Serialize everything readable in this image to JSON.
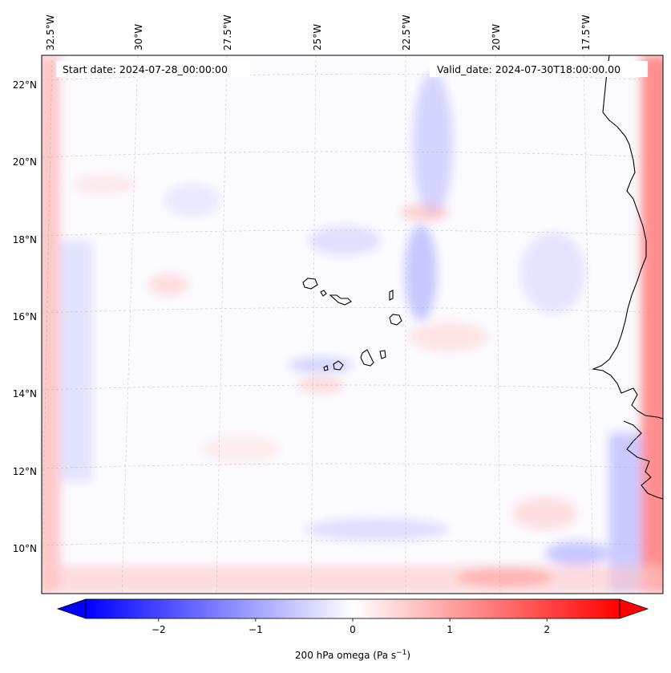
{
  "map": {
    "start_date_label": "Start date: 2024-07-28_00:00:00",
    "valid_date_label": "Valid_date: 2024-07-30T18:00:00.00",
    "lon_labels": [
      "32.5°W",
      "30°W",
      "27.5°W",
      "25°W",
      "22.5°W",
      "20°W",
      "17.5°W"
    ],
    "lat_labels": [
      "22°N",
      "20°N",
      "18°N",
      "16°N",
      "14°N",
      "12°N",
      "10°N"
    ],
    "field": "200 hPa omega",
    "colormap": "bwr",
    "colors": {
      "negative": "#0000ff",
      "zero": "#ffffff",
      "positive": "#ff0000",
      "coast": "#000000",
      "grid": "#b0b0b0"
    }
  },
  "colorbar": {
    "label": "200 hPa omega (Pa s",
    "unit_superscript": "−1",
    "label_close": ")",
    "min": -2.75,
    "max": 2.75,
    "ticks": [
      {
        "value": -2,
        "label": "−2"
      },
      {
        "value": -1,
        "label": "−1"
      },
      {
        "value": 0,
        "label": "0"
      },
      {
        "value": 1,
        "label": "1"
      },
      {
        "value": 2,
        "label": "2"
      }
    ]
  }
}
